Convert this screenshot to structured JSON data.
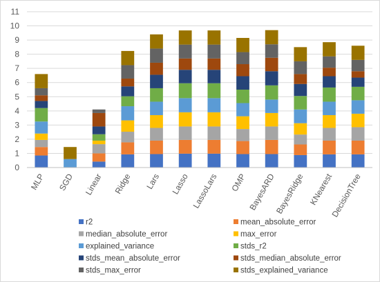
{
  "chart_data": {
    "type": "bar",
    "stacked": true,
    "categories": [
      "MLP",
      "SGD",
      "Linear",
      "Ridge",
      "Lars",
      "Lasso",
      "LassoLars",
      "OMP",
      "BayesARD",
      "BayesRidge",
      "KNearest",
      "DecisionTree"
    ],
    "ylim": [
      0,
      11
    ],
    "yticks": [
      0,
      1,
      2,
      3,
      4,
      5,
      6,
      7,
      8,
      9,
      10,
      11
    ],
    "grid": true,
    "legend_position": "bottom",
    "series": [
      {
        "name": "r2",
        "color": "#4472C4",
        "values": [
          0.85,
          0.0,
          0.42,
          0.93,
          0.95,
          0.98,
          0.98,
          0.95,
          0.95,
          0.88,
          0.93,
          0.93
        ]
      },
      {
        "name": "mean_absolute_error",
        "color": "#ED7D31",
        "values": [
          0.6,
          0.0,
          0.58,
          0.85,
          0.95,
          0.97,
          0.97,
          0.92,
          1.0,
          0.75,
          0.97,
          0.97
        ]
      },
      {
        "name": "median_absolute_error",
        "color": "#A5A5A5",
        "values": [
          0.5,
          0.0,
          0.65,
          0.75,
          0.9,
          0.95,
          0.95,
          0.85,
          0.95,
          0.7,
          0.9,
          0.95
        ]
      },
      {
        "name": "max_error",
        "color": "#FFC000",
        "values": [
          0.45,
          0.0,
          0.25,
          0.8,
          0.9,
          1.0,
          1.0,
          0.9,
          0.95,
          0.8,
          0.9,
          0.95
        ]
      },
      {
        "name": "explained_variance",
        "color": "#5B9BD5",
        "values": [
          0.85,
          0.6,
          0.0,
          1.0,
          0.95,
          1.0,
          1.0,
          0.93,
          0.95,
          0.97,
          0.95,
          0.95
        ]
      },
      {
        "name": "stds_r2",
        "color": "#70AD47",
        "values": [
          0.95,
          0.0,
          0.45,
          0.7,
          0.95,
          1.05,
          1.05,
          0.95,
          1.0,
          0.95,
          1.0,
          0.95
        ]
      },
      {
        "name": "stds_mean_absolute_error",
        "color": "#264478",
        "values": [
          0.5,
          0.0,
          0.55,
          0.7,
          0.95,
          0.95,
          0.95,
          0.95,
          1.0,
          0.85,
          0.8,
          0.65
        ]
      },
      {
        "name": "stds_median_absolute_error",
        "color": "#9E480E",
        "values": [
          0.4,
          0.0,
          0.95,
          0.55,
          0.85,
          0.8,
          0.8,
          0.85,
          0.95,
          0.7,
          0.6,
          0.45
        ]
      },
      {
        "name": "stds_max_error",
        "color": "#636363",
        "values": [
          0.5,
          0.0,
          0.25,
          0.95,
          1.0,
          0.98,
          0.98,
          0.85,
          0.95,
          0.9,
          0.8,
          0.8
        ]
      },
      {
        "name": "stds_explained_variance",
        "color": "#997300",
        "values": [
          1.0,
          0.85,
          0.0,
          1.0,
          1.0,
          1.0,
          1.0,
          1.0,
          1.0,
          1.0,
          1.0,
          1.0
        ]
      }
    ]
  }
}
